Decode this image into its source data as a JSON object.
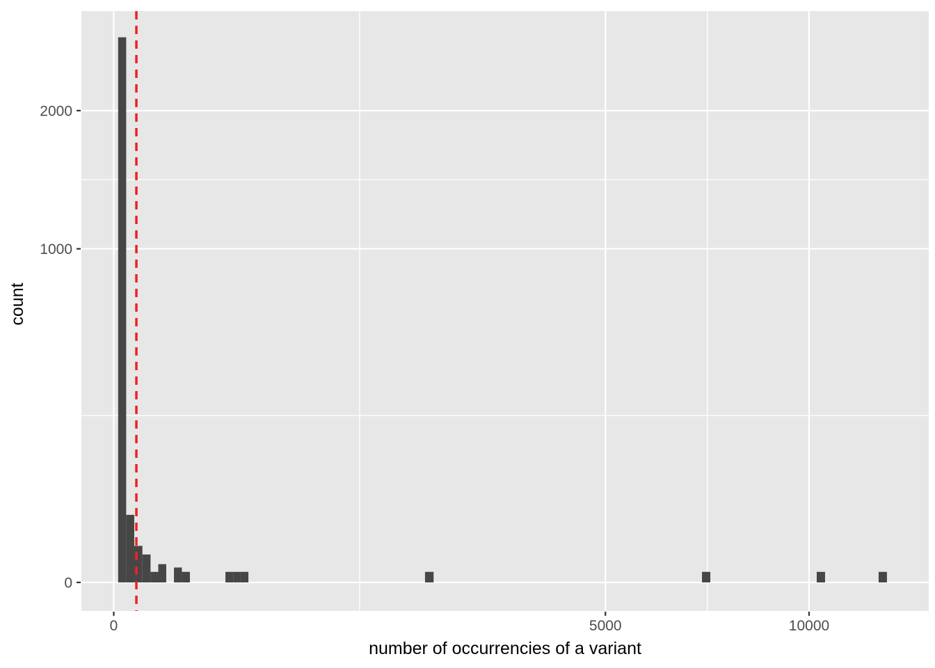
{
  "chart_data": {
    "type": "bar",
    "subtype": "histogram",
    "title": "",
    "xlabel": "number of occurrencies of a variant",
    "ylabel": "count",
    "x_scale": "sqrt",
    "y_scale": "sqrt",
    "x_breaks": [
      0,
      5000,
      10000
    ],
    "x_tick_labels": [
      "0",
      "5000",
      "10000"
    ],
    "y_breaks": [
      0,
      1000,
      2000
    ],
    "y_tick_labels": [
      "0",
      "1000",
      "2000"
    ],
    "x_range": [
      0,
      13700
    ],
    "y_range": [
      0,
      2930
    ],
    "grid": "major-and-minor-white-on-grey",
    "legend": "none",
    "bars": [
      {
        "x0": 0.4,
        "x1": 3.2,
        "count": 2670
      },
      {
        "x0": 3.2,
        "x1": 8.7,
        "count": 41
      },
      {
        "x0": 8.7,
        "x1": 17,
        "count": 12
      },
      {
        "x0": 17,
        "x1": 28,
        "count": 7
      },
      {
        "x0": 28,
        "x1": 41,
        "count": 1
      },
      {
        "x0": 41,
        "x1": 57,
        "count": 3
      },
      {
        "x0": 75,
        "x1": 96,
        "count": 2
      },
      {
        "x0": 96,
        "x1": 120,
        "count": 1
      },
      {
        "x0": 258,
        "x1": 295,
        "count": 1
      },
      {
        "x0": 295,
        "x1": 333,
        "count": 1
      },
      {
        "x0": 333,
        "x1": 375,
        "count": 1
      },
      {
        "x0": 2004,
        "x1": 2116,
        "count": 1
      },
      {
        "x0": 7157,
        "x1": 7361,
        "count": 1
      },
      {
        "x0": 10221,
        "x1": 10465,
        "count": 1
      },
      {
        "x0": 12100,
        "x1": 12365,
        "count": 1
      }
    ],
    "reference_line": {
      "x": 10.6,
      "orientation": "vertical",
      "style": "dashed"
    },
    "colors": {
      "panel_bg": "#E7E7E7",
      "bar_fill": "#464646",
      "grid": "#FFFFFF",
      "tick_text": "#4D4D4D",
      "tick_mark": "#333333",
      "axis_title": "#000000",
      "reference_line": "#EE2222"
    }
  }
}
